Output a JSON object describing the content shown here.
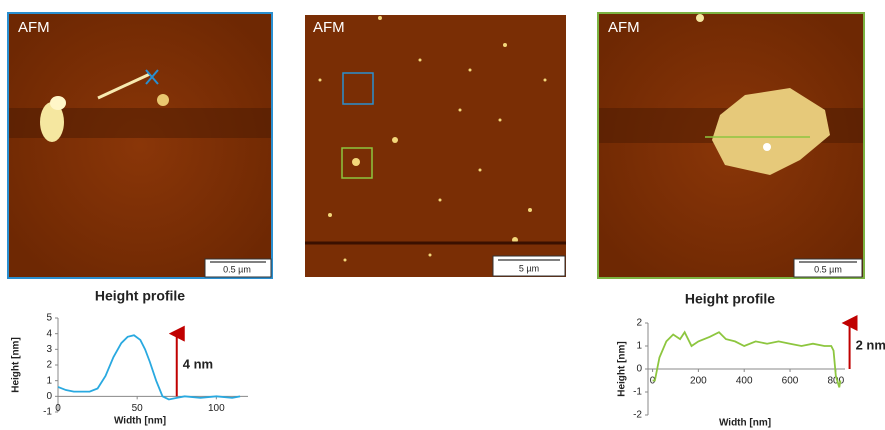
{
  "panels": [
    {
      "label": "AFM",
      "scale": "0.5 µm"
    },
    {
      "label": "AFM",
      "scale": "5 µm"
    },
    {
      "label": "AFM",
      "scale": "0.5 µm"
    }
  ],
  "chart_data": [
    {
      "type": "line",
      "title": "Height profile",
      "x_label": "Width [nm]",
      "y_label": "Height [nm]",
      "x": [
        0,
        5,
        10,
        20,
        25,
        30,
        35,
        40,
        44,
        48,
        52,
        55,
        58,
        62,
        66,
        70,
        75,
        80,
        90,
        100,
        110,
        115
      ],
      "values": [
        0.6,
        0.4,
        0.3,
        0.3,
        0.5,
        1.3,
        2.5,
        3.4,
        3.8,
        3.9,
        3.6,
        3.0,
        2.2,
        1.0,
        0.0,
        -0.2,
        -0.1,
        0.0,
        -0.1,
        0.0,
        -0.1,
        0.0
      ],
      "color": "#29a9e0",
      "xlim": [
        0,
        120
      ],
      "ylim": [
        -1,
        5
      ],
      "xticks": [
        0,
        50,
        100
      ],
      "yticks": [
        -1,
        0,
        1,
        2,
        3,
        4,
        5
      ],
      "arrow": {
        "x": 75,
        "from": 0,
        "to": 4,
        "text": "4 nm",
        "color": "#c00000"
      }
    },
    {
      "type": "line",
      "title": "Height profile",
      "x_label": "Width [nm]",
      "y_label": "Height [nm]",
      "x": [
        0,
        10,
        30,
        60,
        90,
        120,
        140,
        170,
        200,
        250,
        290,
        320,
        360,
        400,
        450,
        500,
        550,
        600,
        650,
        700,
        750,
        780,
        790,
        800,
        815,
        820
      ],
      "values": [
        -0.5,
        -0.5,
        0.5,
        1.2,
        1.5,
        1.3,
        1.6,
        1.0,
        1.2,
        1.4,
        1.6,
        1.3,
        1.2,
        1.0,
        1.2,
        1.1,
        1.2,
        1.1,
        1.0,
        1.1,
        1.0,
        1.0,
        0.8,
        -0.3,
        -0.8,
        -0.5
      ],
      "color": "#8dc63f",
      "xlim": [
        -20,
        840
      ],
      "ylim": [
        -2,
        2
      ],
      "xticks": [
        0,
        200,
        400,
        600,
        800
      ],
      "yticks": [
        -2,
        -1,
        0,
        1,
        2
      ],
      "arrow": {
        "x": 860,
        "from": 0,
        "to": 2,
        "text": "2 nm",
        "color": "#c00000"
      }
    }
  ]
}
